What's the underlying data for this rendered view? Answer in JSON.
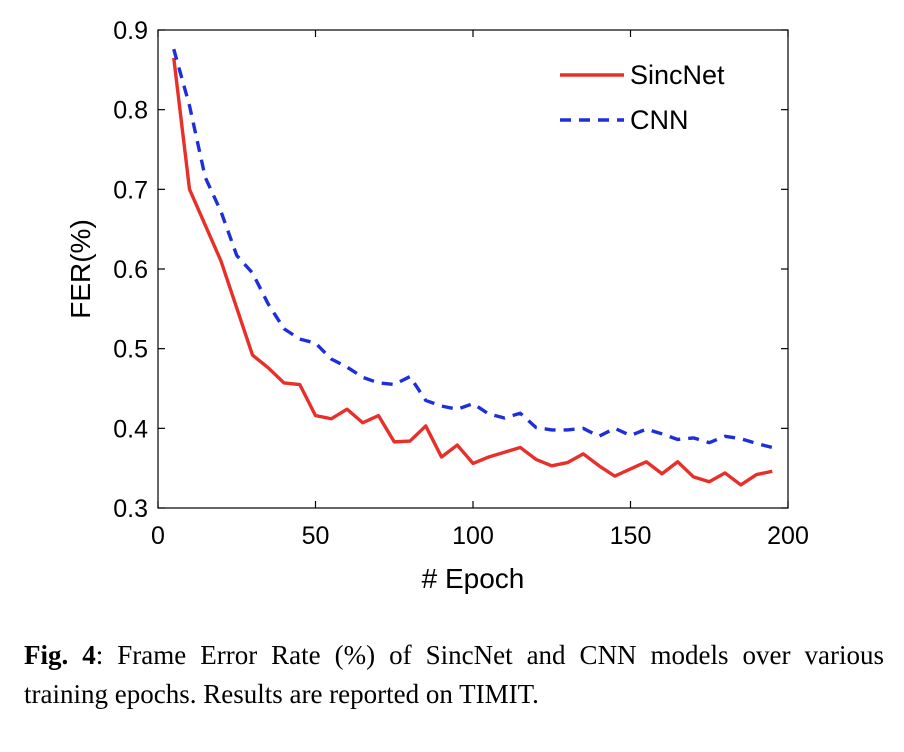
{
  "chart_data": {
    "type": "line",
    "xlabel": "# Epoch",
    "ylabel": "FER(%)",
    "xlim": [
      0,
      200
    ],
    "ylim": [
      0.3,
      0.9
    ],
    "xticks": [
      "0",
      "50",
      "100",
      "150",
      "200"
    ],
    "yticks": [
      "0.3",
      "0.4",
      "0.5",
      "0.6",
      "0.7",
      "0.8",
      "0.9"
    ],
    "grid": false,
    "legend_position": "top-right",
    "series": [
      {
        "name": "SincNet",
        "color": "#e8302a",
        "style": "solid",
        "x": [
          5,
          10,
          20,
          30,
          35,
          40,
          45,
          50,
          55,
          60,
          65,
          70,
          75,
          80,
          85,
          90,
          95,
          100,
          105,
          110,
          115,
          120,
          125,
          130,
          135,
          140,
          145,
          150,
          155,
          160,
          165,
          170,
          175,
          180,
          185,
          190,
          195
        ],
        "values": [
          0.865,
          0.7,
          0.61,
          0.492,
          0.476,
          0.457,
          0.455,
          0.416,
          0.412,
          0.424,
          0.407,
          0.416,
          0.383,
          0.384,
          0.403,
          0.364,
          0.379,
          0.356,
          0.364,
          0.37,
          0.376,
          0.361,
          0.353,
          0.357,
          0.368,
          0.353,
          0.34,
          0.349,
          0.358,
          0.343,
          0.358,
          0.339,
          0.333,
          0.344,
          0.329,
          0.342,
          0.346
        ]
      },
      {
        "name": "CNN",
        "color": "#1f2fd8",
        "style": "dashed",
        "x": [
          5,
          10,
          15,
          20,
          25,
          30,
          35,
          40,
          45,
          50,
          55,
          60,
          65,
          70,
          75,
          80,
          85,
          90,
          95,
          100,
          105,
          110,
          115,
          120,
          125,
          130,
          135,
          140,
          145,
          150,
          155,
          160,
          165,
          170,
          175,
          180,
          185,
          190,
          195
        ],
        "values": [
          0.876,
          0.805,
          0.715,
          0.672,
          0.617,
          0.595,
          0.556,
          0.525,
          0.512,
          0.507,
          0.487,
          0.477,
          0.464,
          0.457,
          0.455,
          0.465,
          0.435,
          0.428,
          0.424,
          0.431,
          0.418,
          0.413,
          0.419,
          0.401,
          0.398,
          0.398,
          0.4,
          0.39,
          0.4,
          0.391,
          0.399,
          0.393,
          0.386,
          0.388,
          0.382,
          0.39,
          0.387,
          0.381,
          0.376
        ]
      }
    ]
  },
  "caption": {
    "label": "Fig. 4",
    "text": ":  Frame Error Rate (%) of SincNet and CNN models over various training epochs. Results are reported on TIMIT."
  }
}
